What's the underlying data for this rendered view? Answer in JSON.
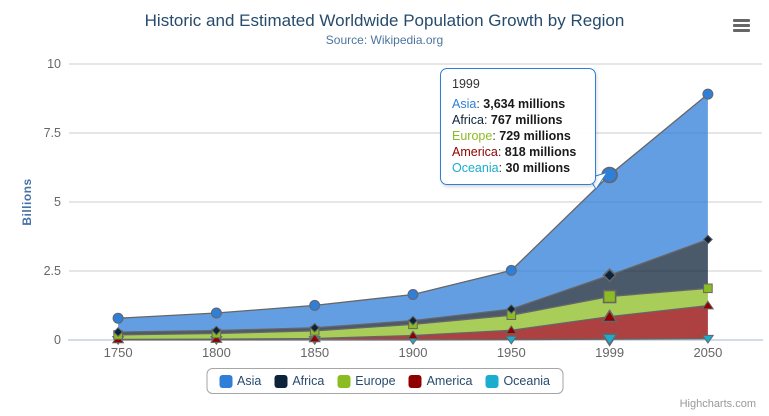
{
  "header": {
    "title": "Historic and Estimated Worldwide Population Growth by Region",
    "subtitle": "Source: Wikipedia.org"
  },
  "chart_data": {
    "type": "area",
    "stacking": "normal",
    "title": "Historic and Estimated Worldwide Population Growth by Region",
    "subtitle": "Source: Wikipedia.org",
    "categories": [
      "1750",
      "1800",
      "1850",
      "1900",
      "1950",
      "1999",
      "2050"
    ],
    "series": [
      {
        "name": "Asia",
        "color": "#2f7ed8",
        "marker": "circle",
        "values": [
          502,
          635,
          809,
          947,
          1402,
          3634,
          5268
        ]
      },
      {
        "name": "Africa",
        "color": "#0d233a",
        "marker": "diamond",
        "values": [
          106,
          107,
          111,
          133,
          221,
          767,
          1766
        ]
      },
      {
        "name": "Europe",
        "color": "#8bbc21",
        "marker": "square",
        "values": [
          163,
          203,
          276,
          408,
          547,
          729,
          628
        ]
      },
      {
        "name": "America",
        "color": "#910000",
        "marker": "triangle",
        "values": [
          18,
          31,
          54,
          156,
          339,
          818,
          1201
        ]
      },
      {
        "name": "Oceania",
        "color": "#1aadce",
        "marker": "triangle-down",
        "values": [
          2,
          2,
          2,
          6,
          13,
          30,
          46
        ]
      }
    ],
    "value_unit": "millions",
    "unit_divisor": 1000,
    "xlabel": "",
    "ylabel": "Billions",
    "ylim": [
      0,
      10
    ],
    "yticks": [
      0,
      2.5,
      5,
      7.5,
      10
    ],
    "grid": true,
    "legend_position": "bottom",
    "line_color": "#666666",
    "fill_opacity": 0.75,
    "grid_color": "#cccccc",
    "axis_line_color": "#C0D0E0",
    "label_color": "#666666",
    "hover": {
      "category": "1999",
      "series": "Asia"
    }
  },
  "tooltip": {
    "header": "1999",
    "separator": ": ",
    "rows": [
      {
        "name": "Asia",
        "value": "3,634 millions"
      },
      {
        "name": "Africa",
        "value": "767 millions"
      },
      {
        "name": "Europe",
        "value": "729 millions"
      },
      {
        "name": "America",
        "value": "818 millions"
      },
      {
        "name": "Oceania",
        "value": "30 millions"
      }
    ]
  },
  "icons": {
    "export_menu": "hamburger"
  },
  "credits": "Highcharts.com"
}
